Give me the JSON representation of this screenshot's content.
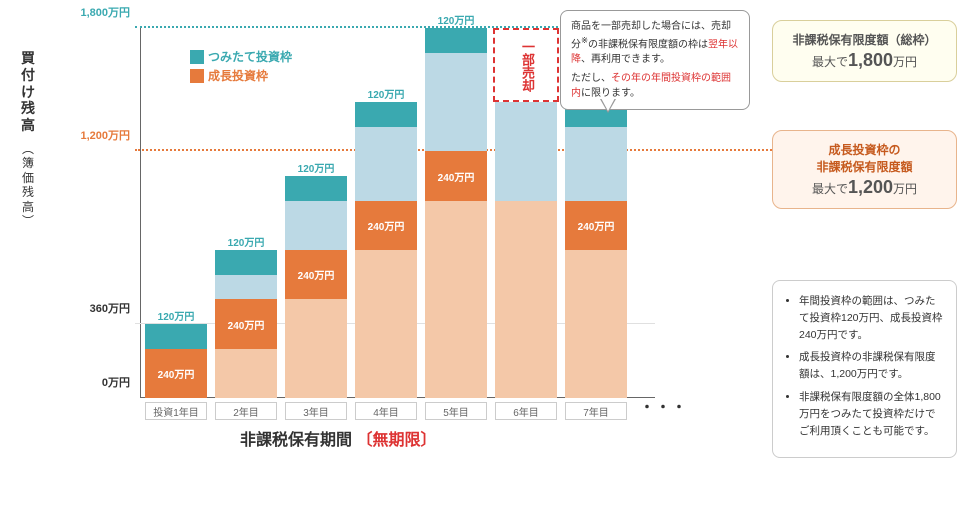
{
  "yAxis": {
    "titleMain": "買付け残高",
    "titleSub": "簿価残高",
    "ticks": [
      {
        "value": 0,
        "label": "0万円"
      },
      {
        "value": 360,
        "label": "360万円"
      },
      {
        "value": 1200,
        "label": "1,200万円",
        "color": "#e67a3c",
        "dotted": true,
        "extendWidth": 685
      },
      {
        "value": 1800,
        "label": "1,800万円",
        "color": "#3aa9b0",
        "dotted": true,
        "extendWidth": 515
      }
    ],
    "max": 1800,
    "pxHeight": 370
  },
  "legend": {
    "tsumitate": {
      "label": "つみたて投資枠",
      "color": "#3aa9b0"
    },
    "growth": {
      "label": "成長投資枠",
      "color": "#e67a3c"
    }
  },
  "xLabels": [
    "投資1年目",
    "2年目",
    "3年目",
    "4年目",
    "5年目",
    "6年目",
    "7年目"
  ],
  "dots": "・・・",
  "bars": [
    {
      "tsumiAcc": 0,
      "growthAcc": 0,
      "tsumiNew": 120,
      "growthNew": 240,
      "showLabels": true
    },
    {
      "tsumiAcc": 120,
      "growthAcc": 240,
      "tsumiNew": 120,
      "growthNew": 240,
      "showLabels": true
    },
    {
      "tsumiAcc": 240,
      "growthAcc": 480,
      "tsumiNew": 120,
      "growthNew": 240,
      "showLabels": true
    },
    {
      "tsumiAcc": 360,
      "growthAcc": 720,
      "tsumiNew": 120,
      "growthNew": 240,
      "showLabels": true
    },
    {
      "tsumiAcc": 480,
      "growthAcc": 960,
      "tsumiNew": 120,
      "growthNew": 240,
      "showLabels": true
    },
    {
      "tsumiAcc": 480,
      "growthAcc": 960,
      "tsumiNew": 0,
      "growthNew": 0,
      "showLabels": false
    },
    {
      "tsumiAcc": 360,
      "growthAcc": 720,
      "tsumiNew": 120,
      "growthNew": 240,
      "showLabels": true
    }
  ],
  "segLabels": {
    "tsumi": "120万円",
    "growth": "240万円"
  },
  "bottomTitle": {
    "plain": "非課税保有期間",
    "bracketL": "〔",
    "red": "無期限",
    "bracketR": "〕"
  },
  "partialSale": {
    "label": "一部売却"
  },
  "callout": {
    "line1a": "商品を一部売却した場合には、売却分",
    "line1b": "※",
    "line1c": "の非課税保有限度額の枠は",
    "line1red": "翌年以降",
    "line1d": "、再利用できます。",
    "line2a": "ただし、",
    "line2red": "その年の年間投資枠の範囲内",
    "line2b": "に限ります。"
  },
  "infoBox1": {
    "title": "非課税保有限度額（総枠）",
    "prefix": "最大で",
    "amount": "1,800",
    "suffix": "万円"
  },
  "infoBox2": {
    "title1": "成長投資枠の",
    "title2": "非課税保有限度額",
    "prefix": "最大で",
    "amount": "1,200",
    "suffix": "万円"
  },
  "notes": {
    "items": [
      "年間投資枠の範囲は、つみたて投資枠120万円、成長投資枠240万円です。",
      "成長投資枠の非課税保有限度額は、1,200万円です。",
      "非課税保有限度額の全体1,800万円をつみたて投資枠だけでご利用頂くことも可能です。"
    ]
  },
  "colors": {
    "tsumiNew": "#3aa9b0",
    "growthNew": "#e67a3c",
    "tsumiAcc": "#bcd9e5",
    "growthAcc": "#f4c8a8",
    "red": "#d33"
  }
}
